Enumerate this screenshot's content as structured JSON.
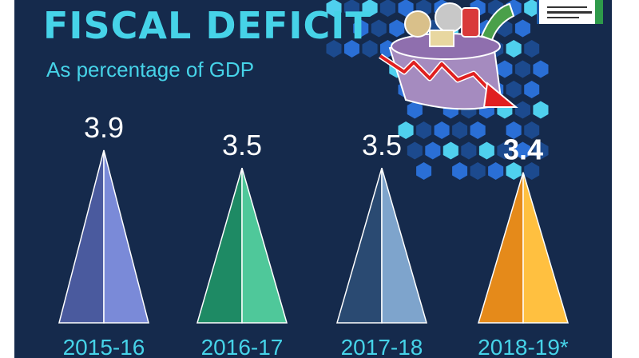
{
  "header": {
    "title": "FISCAL DEFICIT",
    "subtitle": "As percentage of GDP"
  },
  "logo": {
    "icon": "press-information-bureau-logo-icon"
  },
  "illustration": {
    "icon": "shopping-basket-with-falling-arrow-icon"
  },
  "colors": {
    "background": "#152a4c",
    "title": "#46d3e8",
    "hexagon": "#2a6fd6",
    "hexagon_light": "#4fd0ee",
    "arrow": "#e02020"
  },
  "chart_data": {
    "type": "bar",
    "categories": [
      "2015-16",
      "2016-17",
      "2017-18",
      "2018-19*"
    ],
    "values": [
      3.9,
      3.5,
      3.5,
      3.4
    ],
    "value_labels": [
      "3.9",
      "3.5",
      "3.5",
      "3.4"
    ],
    "title": "FISCAL DEFICIT",
    "subtitle": "As percentage of GDP",
    "xlabel": "",
    "ylabel": "",
    "ylim": [
      0,
      3.9
    ],
    "grid": false,
    "bar_style": "pyramid",
    "bar_colors": [
      [
        "#4a5a9e",
        "#7a8ad8"
      ],
      [
        "#1e8a64",
        "#4fc89a"
      ],
      [
        "#2a4a72",
        "#7ea4cc"
      ],
      [
        "#e58a1a",
        "#ffc040"
      ]
    ],
    "highlighted_index": 3
  }
}
